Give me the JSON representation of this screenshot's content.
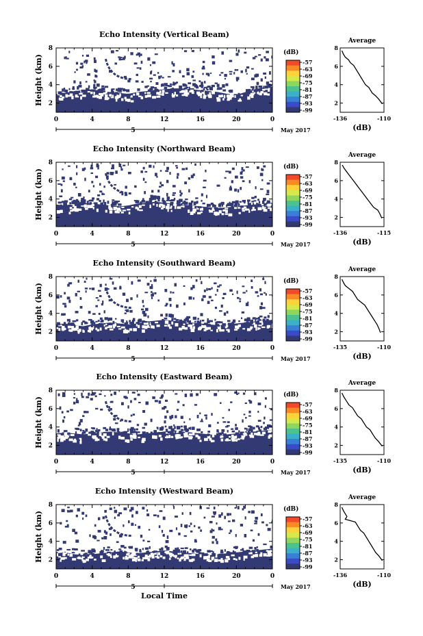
{
  "chart_data": [
    {
      "type": "heatmap",
      "title": "Echo Intensity (Vertical Beam)",
      "ylabel": "Height (km)",
      "xticks": [
        "0",
        "4",
        "8",
        "12",
        "16",
        "20",
        "0"
      ],
      "yticks": [
        "2",
        "4",
        "6",
        "8"
      ],
      "xlim": [
        0,
        24
      ],
      "ylim": [
        1,
        8
      ],
      "day_label": "5",
      "month_label": "May 2017",
      "colorbar": {
        "unit": "(dB)",
        "ticks": [
          "-57",
          "-63",
          "-69",
          "-75",
          "-81",
          "-87",
          "-93",
          "-99"
        ]
      },
      "cloud_top_km": [
        3.2,
        3.1,
        3.3,
        3.4,
        3.5,
        3.3,
        3.2,
        3.1,
        3.0,
        3.2,
        3.3,
        3.4,
        3.5,
        3.6,
        3.6,
        3.5,
        3.4,
        3.3,
        3.2,
        3.0,
        2.9,
        3.2,
        3.5,
        3.7,
        3.8
      ],
      "average_profile": {
        "title": "Average",
        "xlabel": "(dB)",
        "xticks": [
          "-136",
          "-110"
        ],
        "yticks": [
          "2",
          "4",
          "6",
          "8"
        ],
        "xlim": [
          -136,
          -110
        ],
        "ylim": [
          1,
          8
        ],
        "x": [
          -135,
          -134,
          -133,
          -131,
          -130,
          -128,
          -127,
          -126,
          -125,
          -124,
          -123,
          -122,
          -121,
          -119,
          -118,
          -117,
          -115,
          -113,
          -111
        ],
        "y": [
          7.7,
          7.3,
          7.0,
          6.7,
          6.4,
          6.1,
          5.8,
          5.5,
          5.2,
          4.9,
          4.6,
          4.3,
          4.0,
          3.7,
          3.4,
          3.1,
          2.8,
          2.4,
          1.9
        ]
      }
    },
    {
      "type": "heatmap",
      "title": "Echo Intensity (Northward Beam)",
      "ylabel": "Height (km)",
      "xticks": [
        "0",
        "4",
        "8",
        "12",
        "16",
        "20",
        "0"
      ],
      "yticks": [
        "2",
        "4",
        "6",
        "8"
      ],
      "xlim": [
        0,
        24
      ],
      "ylim": [
        1,
        8
      ],
      "day_label": "5",
      "month_label": "May 2017",
      "colorbar": {
        "unit": "(dB)",
        "ticks": [
          "-57",
          "-63",
          "-69",
          "-75",
          "-81",
          "-87",
          "-93",
          "-99"
        ]
      },
      "cloud_top_km": [
        3.4,
        3.3,
        3.5,
        3.6,
        3.5,
        3.4,
        3.3,
        3.2,
        3.3,
        3.5,
        3.6,
        3.7,
        3.6,
        3.5,
        3.4,
        3.3,
        3.2,
        3.1,
        3.0,
        3.1,
        3.2,
        3.3,
        3.4,
        3.5,
        3.6
      ],
      "average_profile": {
        "title": "Average",
        "xlabel": "(dB)",
        "xticks": [
          "-136",
          "-115"
        ],
        "yticks": [
          "2",
          "4",
          "6",
          "8"
        ],
        "xlim": [
          -136,
          -115
        ],
        "ylim": [
          1,
          8
        ],
        "x": [
          -135,
          -134,
          -133,
          -132,
          -131,
          -130,
          -129,
          -128,
          -127,
          -126,
          -125,
          -124,
          -123,
          -122,
          -121,
          -120,
          -118,
          -117,
          -116
        ],
        "y": [
          7.7,
          7.3,
          7.0,
          6.7,
          6.4,
          6.1,
          5.8,
          5.5,
          5.2,
          4.9,
          4.6,
          4.3,
          4.0,
          3.7,
          3.4,
          3.1,
          2.8,
          2.4,
          1.9
        ]
      }
    },
    {
      "type": "heatmap",
      "title": "Echo Intensity (Southward Beam)",
      "ylabel": "Height (km)",
      "xticks": [
        "0",
        "4",
        "8",
        "12",
        "16",
        "20",
        "0"
      ],
      "yticks": [
        "2",
        "4",
        "6",
        "8"
      ],
      "xlim": [
        0,
        24
      ],
      "ylim": [
        1,
        8
      ],
      "day_label": "5",
      "month_label": "May 2017",
      "colorbar": {
        "unit": "(dB)",
        "ticks": [
          "-57",
          "-63",
          "-69",
          "-75",
          "-81",
          "-87",
          "-93",
          "-99"
        ]
      },
      "cloud_top_km": [
        2.8,
        2.9,
        2.7,
        2.6,
        2.8,
        2.9,
        3.0,
        2.9,
        2.8,
        2.9,
        3.1,
        3.2,
        3.3,
        3.2,
        3.1,
        3.0,
        2.9,
        2.8,
        2.7,
        2.8,
        2.9,
        3.0,
        3.1,
        3.2,
        3.3
      ],
      "average_profile": {
        "title": "Average",
        "xlabel": "(dB)",
        "xticks": [
          "-135",
          "-110"
        ],
        "yticks": [
          "2",
          "4",
          "6",
          "8"
        ],
        "xlim": [
          -135,
          -110
        ],
        "ylim": [
          1,
          8
        ],
        "x": [
          -134,
          -133,
          -132,
          -130,
          -128,
          -127,
          -126,
          -125,
          -123,
          -121,
          -120,
          -119,
          -118,
          -117,
          -116,
          -115,
          -114,
          -113,
          -112
        ],
        "y": [
          7.7,
          7.3,
          7.0,
          6.7,
          6.4,
          6.1,
          5.8,
          5.5,
          5.2,
          4.9,
          4.6,
          4.3,
          4.0,
          3.7,
          3.4,
          3.1,
          2.8,
          2.4,
          1.9
        ]
      }
    },
    {
      "type": "heatmap",
      "title": "Echo Intensity (Eastward Beam)",
      "ylabel": "Height (km)",
      "xticks": [
        "0",
        "4",
        "8",
        "12",
        "16",
        "20",
        "0"
      ],
      "yticks": [
        "2",
        "4",
        "6",
        "8"
      ],
      "xlim": [
        0,
        24
      ],
      "ylim": [
        1,
        8
      ],
      "day_label": "5",
      "month_label": "May 2017",
      "colorbar": {
        "unit": "(dB)",
        "ticks": [
          "-57",
          "-63",
          "-69",
          "-75",
          "-81",
          "-87",
          "-93",
          "-99"
        ]
      },
      "cloud_top_km": [
        3.3,
        3.4,
        3.3,
        3.2,
        3.3,
        3.4,
        3.5,
        3.4,
        3.3,
        3.2,
        3.3,
        3.4,
        3.5,
        3.6,
        3.5,
        3.4,
        3.3,
        3.2,
        3.1,
        3.2,
        3.3,
        3.4,
        3.5,
        3.6,
        3.7
      ],
      "average_profile": {
        "title": "Average",
        "xlabel": "(dB)",
        "xticks": [
          "-135",
          "-110"
        ],
        "yticks": [
          "2",
          "4",
          "6",
          "8"
        ],
        "xlim": [
          -135,
          -110
        ],
        "ylim": [
          1,
          8
        ],
        "x": [
          -134,
          -133,
          -132,
          -131,
          -130,
          -128,
          -127,
          -126,
          -125,
          -123,
          -122,
          -121,
          -120,
          -118,
          -117,
          -116,
          -115,
          -113,
          -111
        ],
        "y": [
          7.7,
          7.3,
          7.0,
          6.7,
          6.4,
          6.1,
          5.8,
          5.5,
          5.2,
          4.9,
          4.6,
          4.3,
          4.0,
          3.7,
          3.4,
          3.1,
          2.8,
          2.4,
          1.9
        ]
      }
    },
    {
      "type": "heatmap",
      "title": "Echo Intensity (Westward Beam)",
      "ylabel": "Height (km)",
      "xticks": [
        "0",
        "4",
        "8",
        "12",
        "16",
        "20",
        "0"
      ],
      "yticks": [
        "2",
        "4",
        "6",
        "8"
      ],
      "xlim": [
        0,
        24
      ],
      "ylim": [
        1,
        8
      ],
      "day_label": "5",
      "month_label": "May 2017",
      "xlabel": "Local Time",
      "colorbar": {
        "unit": "(dB)",
        "ticks": [
          "-57",
          "-63",
          "-69",
          "-75",
          "-81",
          "-87",
          "-93",
          "-99"
        ]
      },
      "cloud_top_km": [
        2.7,
        2.8,
        2.6,
        2.5,
        2.6,
        2.7,
        2.8,
        2.9,
        2.8,
        2.7,
        2.8,
        2.9,
        3.0,
        2.9,
        2.8,
        2.7,
        2.6,
        2.5,
        2.6,
        2.7,
        2.8,
        2.9,
        3.0,
        3.1,
        3.2
      ],
      "average_profile": {
        "title": "Average",
        "xlabel": "(dB)",
        "xticks": [
          "-136",
          "-110"
        ],
        "yticks": [
          "2",
          "4",
          "6",
          "8"
        ],
        "xlim": [
          -136,
          -110
        ],
        "ylim": [
          1,
          8
        ],
        "x": [
          -135,
          -134,
          -133,
          -132,
          -133,
          -127,
          -126,
          -125,
          -124,
          -122,
          -121,
          -120,
          -119,
          -118,
          -117,
          -116,
          -115,
          -113,
          -111
        ],
        "y": [
          7.7,
          7.3,
          7.0,
          6.7,
          6.4,
          6.1,
          5.8,
          5.5,
          5.2,
          4.9,
          4.6,
          4.3,
          4.0,
          3.7,
          3.4,
          3.1,
          2.8,
          2.4,
          1.9
        ]
      }
    }
  ],
  "colors": {
    "echo": "#333a73",
    "colorbar": [
      "#f04a2a",
      "#f98a24",
      "#ffd23a",
      "#d7e94a",
      "#8fd65e",
      "#4cc28e",
      "#3cb0c8",
      "#3a7fd6",
      "#3a4bc8",
      "#333a73"
    ]
  }
}
